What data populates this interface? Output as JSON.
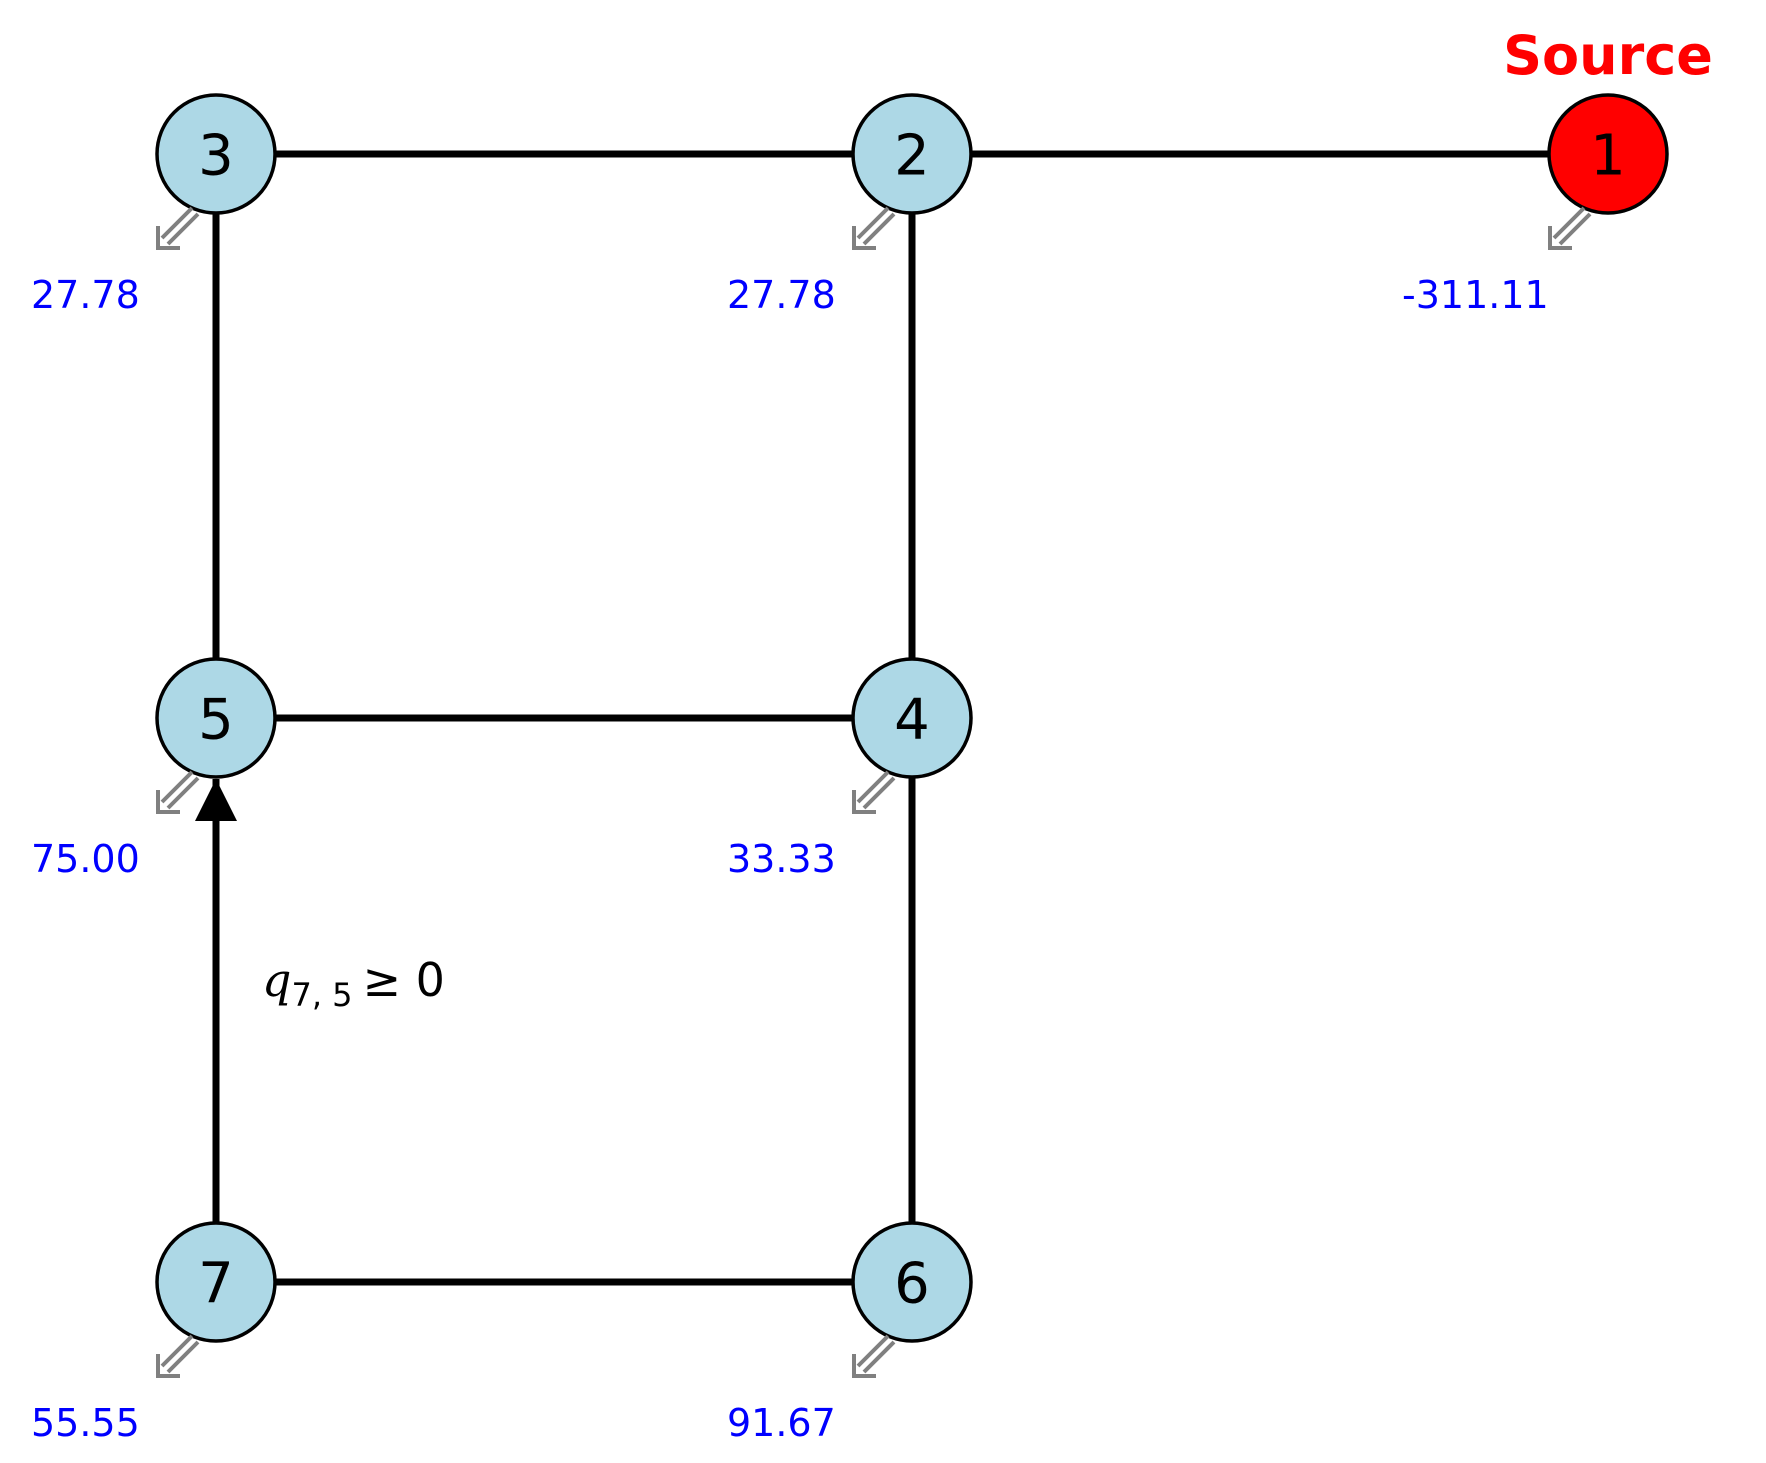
{
  "colors": {
    "node_fill": "#add8e6",
    "source_fill": "#ff0000",
    "edge": "#000000",
    "demand_text": "#0000ff",
    "source_text": "#ff0000",
    "demand_arrow": "#808080"
  },
  "source_label": "Source",
  "nodes": [
    {
      "id": "1",
      "demand": "-311.11",
      "is_source": true
    },
    {
      "id": "2",
      "demand": "27.78",
      "is_source": false
    },
    {
      "id": "3",
      "demand": "27.78",
      "is_source": false
    },
    {
      "id": "4",
      "demand": "33.33",
      "is_source": false
    },
    {
      "id": "5",
      "demand": "75.00",
      "is_source": false
    },
    {
      "id": "6",
      "demand": "91.67",
      "is_source": false
    },
    {
      "id": "7",
      "demand": "55.55",
      "is_source": false
    }
  ],
  "edges": [
    {
      "from": "3",
      "to": "2",
      "directed": false
    },
    {
      "from": "2",
      "to": "1",
      "directed": false
    },
    {
      "from": "3",
      "to": "5",
      "directed": false
    },
    {
      "from": "2",
      "to": "4",
      "directed": false
    },
    {
      "from": "5",
      "to": "4",
      "directed": false
    },
    {
      "from": "4",
      "to": "6",
      "directed": false
    },
    {
      "from": "7",
      "to": "6",
      "directed": false
    },
    {
      "from": "7",
      "to": "5",
      "directed": true
    }
  ],
  "constraint": {
    "symbol": "q",
    "subscript": "7, 5",
    "relation": "≥ 0"
  }
}
